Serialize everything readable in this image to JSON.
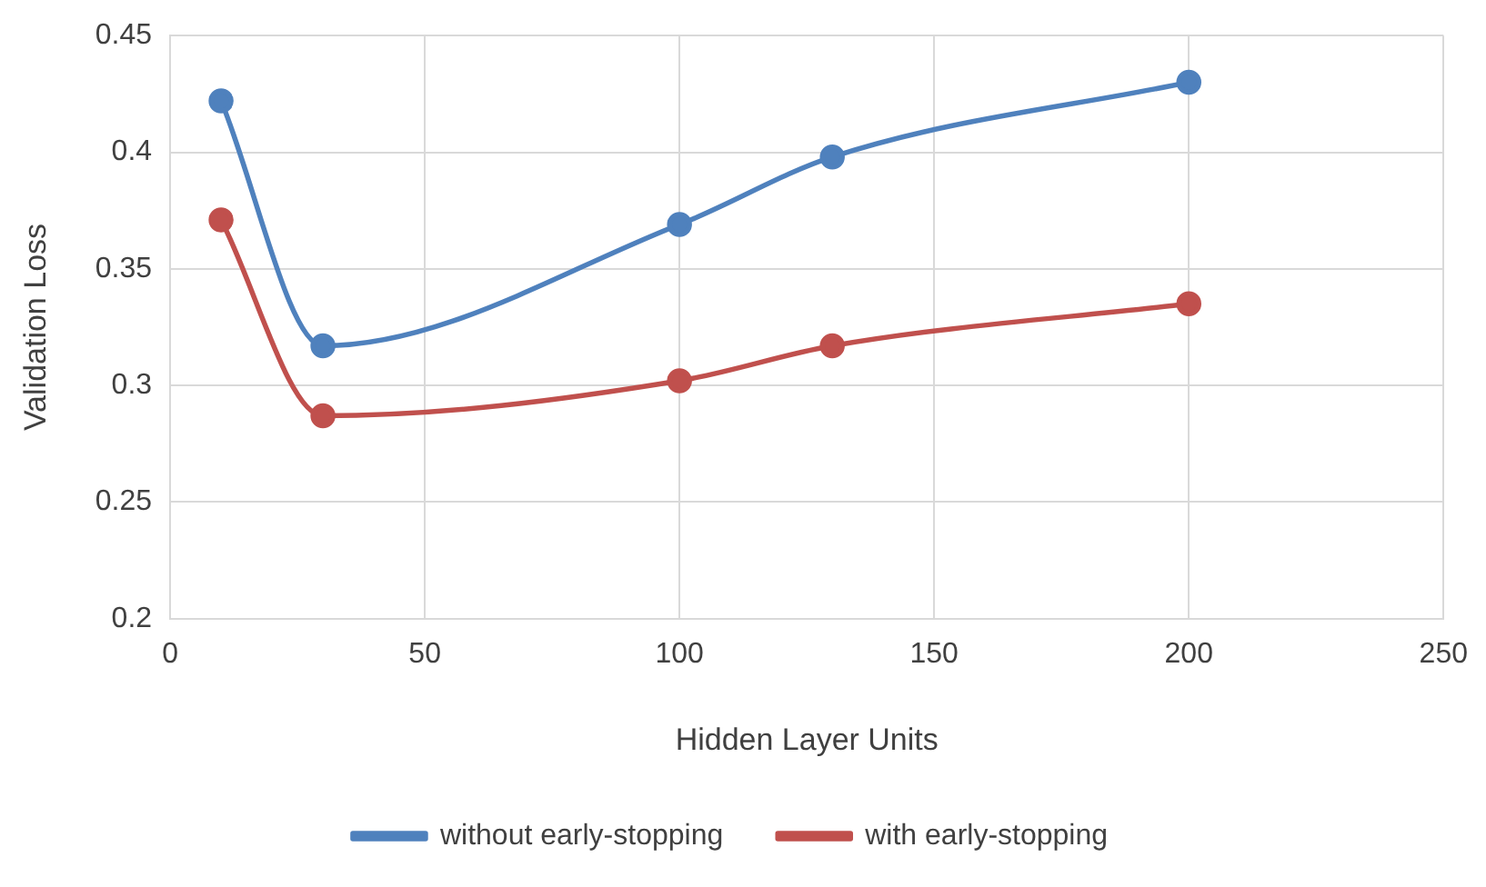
{
  "chart_data": {
    "type": "line",
    "xlabel": "Hidden Layer Units",
    "ylabel": "Validation Loss",
    "xlim": [
      0,
      250
    ],
    "xticks": [
      0,
      50,
      100,
      150,
      200,
      250
    ],
    "ylim": [
      0.2,
      0.45
    ],
    "yticks": [
      0.2,
      0.25,
      0.3,
      0.35,
      0.4,
      0.45
    ],
    "x": [
      10,
      30,
      100,
      130,
      200
    ],
    "series": [
      {
        "name": "without early-stopping",
        "color": "#4f81bd",
        "values": [
          0.422,
          0.317,
          0.369,
          0.398,
          0.43
        ]
      },
      {
        "name": "with early-stopping",
        "color": "#c0504d",
        "values": [
          0.371,
          0.287,
          0.302,
          0.317,
          0.335
        ]
      }
    ],
    "grid": true,
    "legend": "bottom",
    "marker": "circle",
    "line_style": "solid"
  }
}
